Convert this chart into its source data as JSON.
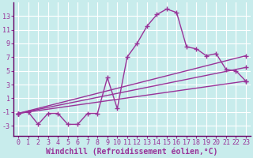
{
  "xlabel": "Windchill (Refroidissement éolien,°C)",
  "xlim": [
    -0.5,
    23.5
  ],
  "ylim": [
    -4.5,
    15
  ],
  "yticks": [
    -3,
    -1,
    1,
    3,
    5,
    7,
    9,
    11,
    13
  ],
  "xticks": [
    0,
    1,
    2,
    3,
    4,
    5,
    6,
    7,
    8,
    9,
    10,
    11,
    12,
    13,
    14,
    15,
    16,
    17,
    18,
    19,
    20,
    21,
    22,
    23
  ],
  "bg_color": "#c8ecec",
  "grid_color": "#ffffff",
  "line_color": "#993399",
  "border_color": "#660066",
  "line1_x": [
    0,
    1,
    2,
    3,
    4,
    5,
    6,
    7,
    8,
    9,
    10,
    11,
    12,
    13,
    14,
    15,
    16,
    17,
    18,
    19,
    20,
    21,
    22,
    23
  ],
  "line1_y": [
    -1.2,
    -1.0,
    -2.8,
    -1.2,
    -1.2,
    -2.8,
    -2.8,
    -1.2,
    -1.2,
    4.0,
    -0.5,
    7.0,
    9.0,
    11.5,
    13.2,
    14.0,
    13.5,
    8.5,
    8.2,
    7.2,
    7.5,
    5.2,
    5.0,
    3.5
  ],
  "line2_x": [
    0,
    23
  ],
  "line2_y": [
    -1.2,
    7.2
  ],
  "line3_x": [
    0,
    23
  ],
  "line3_y": [
    -1.2,
    5.5
  ],
  "line4_x": [
    0,
    23
  ],
  "line4_y": [
    -1.2,
    3.5
  ],
  "marker": "+",
  "markersize": 4,
  "linewidth": 1.0,
  "xlabel_fontsize": 7,
  "tick_fontsize": 6,
  "tick_color": "#993399",
  "xlabel_color": "#993399"
}
